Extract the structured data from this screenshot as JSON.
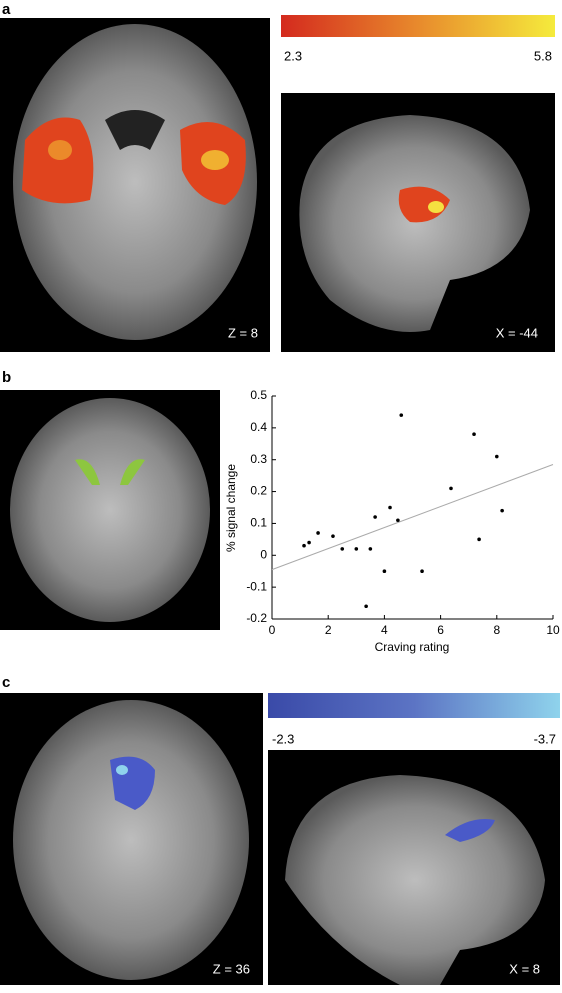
{
  "panels": [
    {
      "label": "a",
      "colorbar": {
        "low": "2.3",
        "high": "5.8"
      },
      "images": [
        "Z = 8",
        "X = -44"
      ]
    },
    {
      "label": "b"
    },
    {
      "label": "c",
      "colorbar": {
        "low": "-2.3",
        "high": "-3.7"
      },
      "images": [
        "Z = 36",
        "X = 8"
      ]
    }
  ],
  "chart_data": {
    "type": "scatter",
    "xlabel": "Craving rating",
    "ylabel": "% signal change",
    "x": [
      1.14,
      1.32,
      1.64,
      2.17,
      2.5,
      3.0,
      3.35,
      3.5,
      3.67,
      4.0,
      4.2,
      4.48,
      4.6,
      5.34,
      6.37,
      7.19,
      7.37,
      8.0,
      8.19
    ],
    "values": [
      0.03,
      0.04,
      0.07,
      0.06,
      0.02,
      0.02,
      -0.16,
      0.02,
      0.12,
      -0.05,
      0.15,
      0.11,
      0.44,
      -0.05,
      0.21,
      0.38,
      0.05,
      0.31,
      0.14
    ],
    "color": "#000000",
    "fit_line": {
      "x": [
        0,
        10
      ],
      "values": [
        -0.045,
        0.285
      ],
      "color": "#aaaaaa"
    },
    "xlim": [
      0,
      10
    ],
    "xticks": [
      0,
      2,
      4,
      6,
      8,
      10
    ],
    "ylim": [
      -0.2,
      0.5
    ],
    "yticks": [
      -0.2,
      -0.1,
      0,
      0.1,
      0.2,
      0.3,
      0.4,
      0.5
    ]
  }
}
